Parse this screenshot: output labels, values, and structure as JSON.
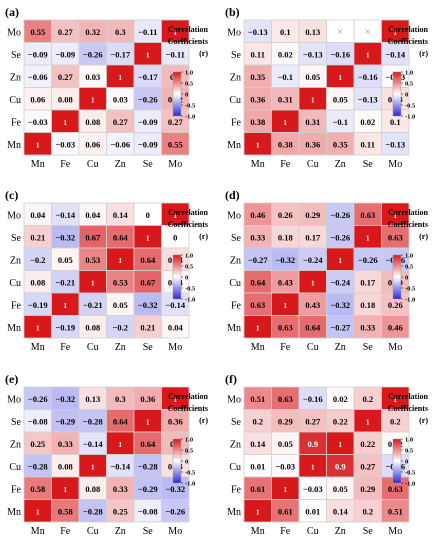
{
  "figure": {
    "colorbar_title": [
      "Correlation",
      "Coefficients",
      "(r)"
    ],
    "colorbar_ticks": [
      "1.0",
      "0.5",
      "0",
      "-0.5",
      "-1.0"
    ],
    "colors": {
      "positive": "#d7191c",
      "neutral": "#ffffff",
      "negative": "#2a2ad8",
      "grid": "#d0d0d0"
    }
  },
  "chart_data": [
    {
      "type": "heatmap",
      "panel": "(a)",
      "rows": [
        "Mo",
        "Se",
        "Zn",
        "Cu",
        "Fe",
        "Mn"
      ],
      "cols": [
        "Mn",
        "Fe",
        "Cu",
        "Zn",
        "Se",
        "Mo"
      ],
      "values": [
        [
          0.55,
          0.27,
          0.32,
          0.3,
          -0.11,
          1
        ],
        [
          -0.09,
          -0.09,
          -0.26,
          -0.17,
          1,
          -0.11
        ],
        [
          -0.06,
          0.27,
          0.03,
          1,
          -0.17,
          0.3
        ],
        [
          0.06,
          0.08,
          1,
          0.03,
          -0.26,
          0.32
        ],
        [
          -0.03,
          1,
          0.08,
          0.27,
          -0.09,
          0.27
        ],
        [
          1,
          -0.03,
          0.06,
          -0.06,
          -0.09,
          0.55
        ]
      ],
      "labels": [
        [
          "0.55",
          "0.27",
          "0.32",
          "0.3",
          "−0.11",
          "1"
        ],
        [
          "−0.09",
          "−0.09",
          "−0.26",
          "−0.17",
          "1",
          "−0.11"
        ],
        [
          "−0.06",
          "0.27",
          "0.03",
          "1",
          "−0.17",
          "0.3"
        ],
        [
          "0.06",
          "0.08",
          "1",
          "0.03",
          "−0.26",
          "0.32"
        ],
        [
          "−0.03",
          "1",
          "0.08",
          "0.27",
          "−0.09",
          "0.27"
        ],
        [
          "1",
          "−0.03",
          "0.06",
          "−0.06",
          "−0.09",
          "0.55"
        ]
      ],
      "colorbar_range": [
        -1,
        1
      ]
    },
    {
      "type": "heatmap",
      "panel": "(b)",
      "rows": [
        "Mo",
        "Se",
        "Zn",
        "Cu",
        "Fe",
        "Mn"
      ],
      "cols": [
        "Mn",
        "Fe",
        "Cu",
        "Zn",
        "Se",
        "Mo"
      ],
      "values": [
        [
          -0.13,
          0.1,
          0.13,
          null,
          null,
          1
        ],
        [
          0.11,
          0.02,
          -0.13,
          -0.16,
          1,
          -0.14
        ],
        [
          0.35,
          -0.1,
          0.05,
          1,
          -0.16,
          -0.03
        ],
        [
          0.36,
          0.31,
          1,
          0.05,
          -0.13,
          0.13
        ],
        [
          0.38,
          1,
          0.31,
          -0.1,
          0.02,
          0.1
        ],
        [
          1,
          0.38,
          0.36,
          0.35,
          0.11,
          -0.13
        ]
      ],
      "labels": [
        [
          "−0.13",
          "0.1",
          "0.13",
          "×",
          "×",
          "1"
        ],
        [
          "0.11",
          "0.02",
          "−0.13",
          "−0.16",
          "1",
          "−0.14"
        ],
        [
          "0.35",
          "−0.1",
          "0.05",
          "1",
          "−0.16",
          "−0.03"
        ],
        [
          "0.36",
          "0.31",
          "1",
          "0.05",
          "−0.13",
          "0.13"
        ],
        [
          "0.38",
          "1",
          "0.31",
          "−0.1",
          "0.02",
          "0.1"
        ],
        [
          "1",
          "0.38",
          "0.36",
          "0.35",
          "0.11",
          "−0.13"
        ]
      ],
      "colorbar_range": [
        -1,
        1
      ]
    },
    {
      "type": "heatmap",
      "panel": "(c)",
      "rows": [
        "Mo",
        "Se",
        "Zn",
        "Cu",
        "Fe",
        "Mn"
      ],
      "cols": [
        "Mn",
        "Fe",
        "Cu",
        "Zn",
        "Se",
        "Mo"
      ],
      "values": [
        [
          0.04,
          -0.14,
          0.04,
          0.14,
          0,
          1
        ],
        [
          0.21,
          -0.32,
          0.67,
          0.64,
          1,
          0
        ],
        [
          -0.2,
          0.05,
          0.53,
          1,
          0.64,
          0.14
        ],
        [
          0.08,
          -0.21,
          1,
          0.53,
          0.67,
          0.04
        ],
        [
          -0.19,
          1,
          -0.21,
          0.05,
          -0.32,
          -0.14
        ],
        [
          1,
          -0.19,
          0.08,
          -0.2,
          0.21,
          0.04
        ]
      ],
      "labels": [
        [
          "0.04",
          "−0.14",
          "0.04",
          "0.14",
          "0",
          "1"
        ],
        [
          "0.21",
          "−0.32",
          "0.67",
          "0.64",
          "1",
          "0"
        ],
        [
          "−0.2",
          "0.05",
          "0.53",
          "1",
          "0.64",
          "0.14"
        ],
        [
          "0.08",
          "−0.21",
          "1",
          "0.53",
          "0.67",
          "0.04"
        ],
        [
          "−0.19",
          "1",
          "−0.21",
          "0.05",
          "−0.32",
          "−0.14"
        ],
        [
          "1",
          "−0.19",
          "0.08",
          "−0.2",
          "0.21",
          "0.04"
        ]
      ],
      "colorbar_range": [
        -1,
        1
      ]
    },
    {
      "type": "heatmap",
      "panel": "(d)",
      "rows": [
        "Mo",
        "Se",
        "Zn",
        "Cu",
        "Fe",
        "Mn"
      ],
      "cols": [
        "Mn",
        "Fe",
        "Cu",
        "Zn",
        "Se",
        "Mo"
      ],
      "values": [
        [
          0.46,
          0.26,
          0.29,
          -0.26,
          0.63,
          1
        ],
        [
          0.33,
          0.18,
          0.17,
          -0.26,
          1,
          0.63
        ],
        [
          -0.27,
          -0.32,
          -0.24,
          1,
          -0.26,
          -0.26
        ],
        [
          0.64,
          0.43,
          1,
          -0.24,
          0.17,
          0.29
        ],
        [
          0.63,
          1,
          0.43,
          -0.32,
          0.18,
          0.26
        ],
        [
          1,
          0.63,
          0.64,
          -0.27,
          0.33,
          0.46
        ]
      ],
      "labels": [
        [
          "0.46",
          "0.26",
          "0.29",
          "−0.26",
          "0.63",
          "1"
        ],
        [
          "0.33",
          "0.18",
          "0.17",
          "−0.26",
          "1",
          "0.63"
        ],
        [
          "−0.27",
          "−0.32",
          "−0.24",
          "1",
          "−0.26",
          "−0.26"
        ],
        [
          "0.64",
          "0.43",
          "1",
          "−0.24",
          "0.17",
          "0.29"
        ],
        [
          "0.63",
          "1",
          "0.43",
          "−0.32",
          "0.18",
          "0.26"
        ],
        [
          "1",
          "0.63",
          "0.64",
          "−0.27",
          "0.33",
          "0.46"
        ]
      ],
      "colorbar_range": [
        -1,
        1
      ]
    },
    {
      "type": "heatmap",
      "panel": "(e)",
      "rows": [
        "Mo",
        "Se",
        "Zn",
        "Cu",
        "Fe",
        "Mn"
      ],
      "cols": [
        "Mn",
        "Fe",
        "Cu",
        "Zn",
        "Se",
        "Mo"
      ],
      "values": [
        [
          -0.26,
          -0.32,
          0.13,
          0.3,
          0.36,
          1
        ],
        [
          -0.08,
          -0.29,
          -0.28,
          0.64,
          1,
          0.36
        ],
        [
          0.25,
          0.33,
          -0.14,
          1,
          0.64,
          0.3
        ],
        [
          -0.28,
          0.08,
          1,
          -0.14,
          -0.28,
          0.13
        ],
        [
          0.58,
          1,
          0.08,
          0.33,
          -0.29,
          -0.32
        ],
        [
          1,
          0.58,
          -0.28,
          0.25,
          -0.08,
          -0.26
        ]
      ],
      "labels": [
        [
          "−0.26",
          "−0.32",
          "0.13",
          "0.3",
          "0.36",
          "1"
        ],
        [
          "−0.08",
          "−0.29",
          "−0.28",
          "0.64",
          "1",
          "0.36"
        ],
        [
          "0.25",
          "0.33",
          "−0.14",
          "1",
          "0.64",
          "0.3"
        ],
        [
          "−0.28",
          "0.08",
          "1",
          "−0.14",
          "−0.28",
          "0.13"
        ],
        [
          "0.58",
          "1",
          "0.08",
          "0.33",
          "−0.29",
          "−0.32"
        ],
        [
          "1",
          "0.58",
          "−0.28",
          "0.25",
          "−0.08",
          "−0.26"
        ]
      ],
      "colorbar_range": [
        -1,
        1
      ]
    },
    {
      "type": "heatmap",
      "panel": "(f)",
      "rows": [
        "Mo",
        "Se",
        "Zn",
        "Cu",
        "Fe",
        "Mn"
      ],
      "cols": [
        "Mn",
        "Fe",
        "Cu",
        "Zn",
        "Se",
        "Mo"
      ],
      "values": [
        [
          0.51,
          0.63,
          -0.16,
          0.02,
          0.2,
          1
        ],
        [
          0.2,
          0.29,
          0.27,
          0.22,
          1,
          0.2
        ],
        [
          0.14,
          0.05,
          0.9,
          1,
          0.22,
          0.02
        ],
        [
          0.01,
          -0.03,
          1,
          0.9,
          0.27,
          -0.16
        ],
        [
          0.61,
          1,
          -0.03,
          0.05,
          0.29,
          0.63
        ],
        [
          1,
          0.61,
          0.01,
          0.14,
          0.2,
          0.51
        ]
      ],
      "labels": [
        [
          "0.51",
          "0.63",
          "−0.16",
          "0.02",
          "0.2",
          "1"
        ],
        [
          "0.2",
          "0.29",
          "0.27",
          "0.22",
          "1",
          "0.2"
        ],
        [
          "0.14",
          "0.05",
          "0.9",
          "1",
          "0.22",
          "0.02"
        ],
        [
          "0.01",
          "−0.03",
          "1",
          "0.9",
          "0.27",
          "−0.16"
        ],
        [
          "0.61",
          "1",
          "−0.03",
          "0.05",
          "0.29",
          "0.63"
        ],
        [
          "1",
          "0.61",
          "0.01",
          "0.14",
          "0.2",
          "0.51"
        ]
      ],
      "colorbar_range": [
        -1,
        1
      ]
    }
  ]
}
